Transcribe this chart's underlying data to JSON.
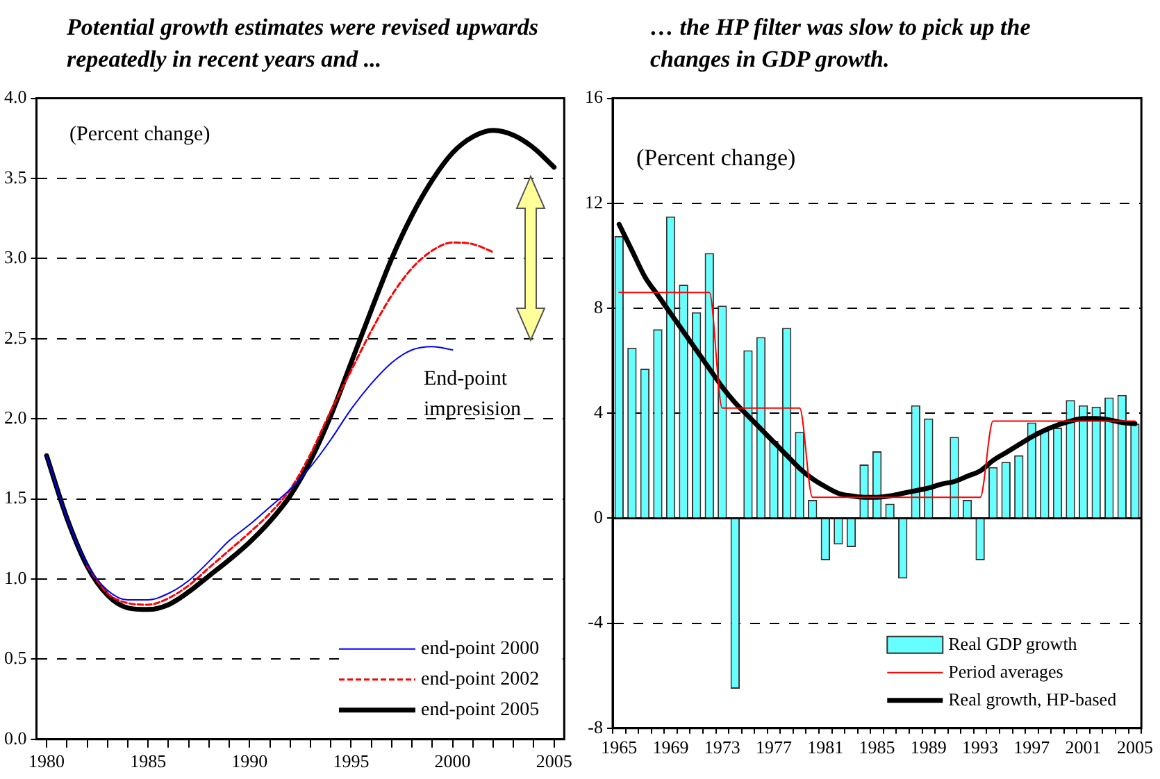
{
  "chart_data": [
    {
      "type": "line",
      "title": "Potential growth estimates were revised upwards repeatedly in recent years and ...",
      "annotations": [
        "(Percent change)",
        "End-point impresision"
      ],
      "x": [
        1980,
        1981,
        1982,
        1983,
        1984,
        1985,
        1986,
        1987,
        1988,
        1989,
        1990,
        1991,
        1992,
        1993,
        1994,
        1995,
        1996,
        1997,
        1998,
        1999,
        2000,
        2001,
        2002,
        2003,
        2004,
        2005
      ],
      "series": [
        {
          "name": "end-point 2000",
          "color": "#0000ff",
          "values": [
            1.77,
            1.38,
            1.09,
            0.93,
            0.87,
            0.87,
            0.91,
            0.99,
            1.11,
            1.24,
            1.34,
            1.45,
            1.56,
            1.7,
            1.87,
            2.06,
            2.22,
            2.35,
            2.43,
            2.45,
            2.43,
            null,
            null,
            null,
            null,
            null
          ]
        },
        {
          "name": "end-point 2002",
          "color": "#ff0000",
          "line_style": "dashed",
          "values": [
            null,
            null,
            1.08,
            0.91,
            0.85,
            0.84,
            0.88,
            0.96,
            1.07,
            1.18,
            1.29,
            1.41,
            1.56,
            1.78,
            2.05,
            2.3,
            2.55,
            2.77,
            2.94,
            3.05,
            3.1,
            3.09,
            3.04,
            null,
            null,
            null
          ]
        },
        {
          "name": "end-point 2005",
          "color": "#000000",
          "values": [
            1.77,
            1.38,
            1.08,
            0.9,
            0.82,
            0.81,
            0.84,
            0.92,
            1.02,
            1.12,
            1.23,
            1.36,
            1.52,
            1.74,
            2.02,
            2.35,
            2.68,
            3.0,
            3.27,
            3.49,
            3.66,
            3.76,
            3.8,
            3.77,
            3.69,
            3.57
          ]
        }
      ],
      "xlim": [
        1979.5,
        2005.5
      ],
      "xticks": [
        1980,
        {
          "value": 1981,
          "label": null
        },
        {
          "value": 1982,
          "label": null
        },
        {
          "value": 1983,
          "label": null
        },
        {
          "value": 1984,
          "label": null
        },
        1985,
        {
          "value": 1986,
          "label": null
        },
        {
          "value": 1987,
          "label": null
        },
        {
          "value": 1988,
          "label": null
        },
        {
          "value": 1989,
          "label": null
        },
        1990,
        {
          "value": 1991,
          "label": null
        },
        {
          "value": 1992,
          "label": null
        },
        {
          "value": 1993,
          "label": null
        },
        {
          "value": 1994,
          "label": null
        },
        1995,
        {
          "value": 1996,
          "label": null
        },
        {
          "value": 1997,
          "label": null
        },
        {
          "value": 1998,
          "label": null
        },
        {
          "value": 1999,
          "label": null
        },
        2000,
        {
          "value": 2001,
          "label": null
        },
        {
          "value": 2002,
          "label": null
        },
        {
          "value": 2003,
          "label": null
        },
        {
          "value": 2004,
          "label": null
        },
        2005
      ],
      "ylim": [
        0,
        4
      ],
      "yticks": [
        {
          "value": 0,
          "label": "0.0"
        },
        {
          "value": 0.5,
          "label": "0.5"
        },
        {
          "value": 1,
          "label": "1.0"
        },
        {
          "value": 1.5,
          "label": "1.5"
        },
        {
          "value": 2,
          "label": "2.0"
        },
        {
          "value": 2.5,
          "label": "2.5"
        },
        {
          "value": 3,
          "label": "3.0"
        },
        {
          "value": 3.5,
          "label": "3.5"
        },
        {
          "value": 4,
          "label": "4.0"
        }
      ],
      "grid": "y",
      "legend": "bottom right",
      "marker": "none"
    },
    {
      "type": "bar",
      "title": "… the HP filter was slow to pick up the changes in GDP growth.",
      "annotations": [
        "(Percent change)"
      ],
      "categories": [
        "1965",
        null,
        null,
        null,
        "1969",
        null,
        null,
        null,
        "1973",
        null,
        null,
        null,
        "1977",
        null,
        null,
        null,
        "1981",
        null,
        null,
        null,
        "1985",
        null,
        null,
        null,
        "1989",
        null,
        null,
        null,
        "1993",
        null,
        null,
        null,
        "1997",
        null,
        null,
        null,
        "2001",
        null,
        null,
        null,
        "2005"
      ],
      "series": [
        {
          "name": "Real GDP growth",
          "type": "bar",
          "color": "#66ffff",
          "values": [
            10.75,
            6.5,
            5.7,
            7.2,
            11.5,
            8.9,
            7.85,
            10.1,
            8.1,
            -6.5,
            6.4,
            6.9,
            2.95,
            7.25,
            3.3,
            0.7,
            -1.6,
            -1.0,
            -1.1,
            2.05,
            2.55,
            0.55,
            -2.3,
            4.3,
            3.8,
            0,
            3.1,
            0.7,
            -1.6,
            1.95,
            2.15,
            2.4,
            3.65,
            3.35,
            3.45,
            4.5,
            4.3,
            4.25,
            4.6,
            4.7,
            3.6
          ]
        },
        {
          "name": "Period averages",
          "type": "line",
          "color": "#ff0000",
          "values": [
            8.6,
            8.6,
            8.6,
            8.6,
            8.6,
            8.6,
            8.6,
            8.6,
            4.2,
            4.2,
            4.2,
            4.2,
            4.2,
            4.2,
            4.2,
            0.8,
            0.8,
            0.8,
            0.8,
            0.8,
            0.8,
            0.8,
            0.8,
            0.8,
            0.8,
            0.8,
            0.8,
            0.8,
            0.8,
            3.7,
            3.7,
            3.7,
            3.7,
            3.7,
            3.7,
            3.7,
            3.7,
            3.7,
            3.7,
            3.7,
            3.7
          ]
        },
        {
          "name": "Real growth, HP-based",
          "type": "line",
          "color": "#000000",
          "values": [
            11.2,
            10.2,
            9.2,
            8.5,
            7.8,
            7.1,
            6.4,
            5.7,
            5.0,
            4.4,
            3.9,
            3.4,
            2.9,
            2.4,
            1.9,
            1.5,
            1.2,
            0.95,
            0.85,
            0.8,
            0.8,
            0.85,
            0.95,
            1.05,
            1.15,
            1.3,
            1.4,
            1.6,
            1.8,
            2.2,
            2.5,
            2.8,
            3.1,
            3.35,
            3.55,
            3.7,
            3.8,
            3.8,
            3.75,
            3.65,
            3.6
          ]
        }
      ],
      "ylim": [
        -8,
        16
      ],
      "yticks": [
        -8,
        -4,
        0,
        4,
        8,
        12,
        16
      ],
      "ref_lines": [
        {
          "axis": "y",
          "value": 0,
          "color": "#000000",
          "line_style": "solid"
        }
      ],
      "grid": "y",
      "legend": "bottom right",
      "marker": "none"
    }
  ]
}
